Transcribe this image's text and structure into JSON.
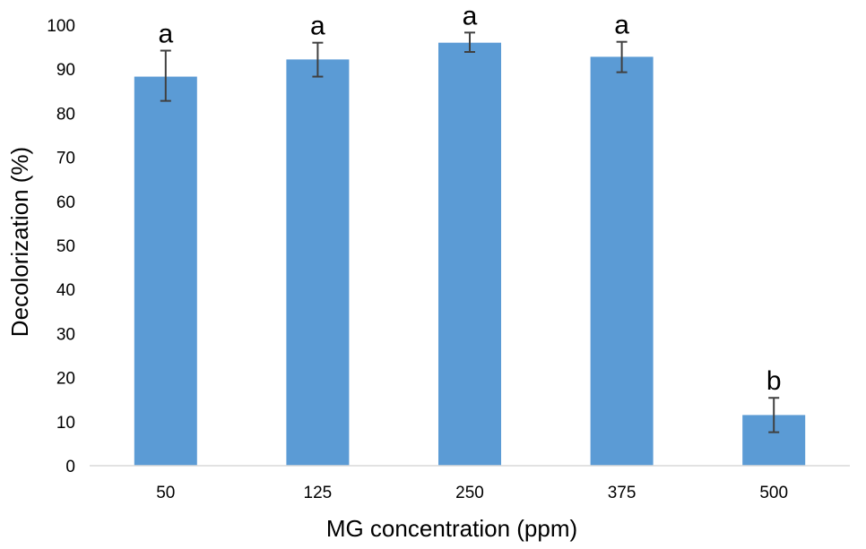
{
  "chart_data": {
    "type": "bar",
    "title": "",
    "xlabel": "MG concentration (ppm)",
    "ylabel": "Decolorization (%)",
    "ylim": [
      0,
      100
    ],
    "yticks": [
      "0",
      "10",
      "20",
      "30",
      "40",
      "50",
      "60",
      "70",
      "80",
      "90",
      "100"
    ],
    "categories": [
      "50",
      "125",
      "250",
      "375",
      "500"
    ],
    "values": [
      88.3,
      92.2,
      96.0,
      92.8,
      11.5
    ],
    "error_low": [
      82.8,
      88.3,
      93.9,
      89.3,
      7.6
    ],
    "error_high": [
      94.2,
      96.0,
      98.3,
      96.2,
      15.4
    ],
    "significance_labels": [
      "a",
      "a",
      "a",
      "a",
      "b"
    ],
    "grid": false,
    "bar_color": "#5b9bd5",
    "error_bar_color": "#404040",
    "axis_color": "#d9d9d9"
  }
}
